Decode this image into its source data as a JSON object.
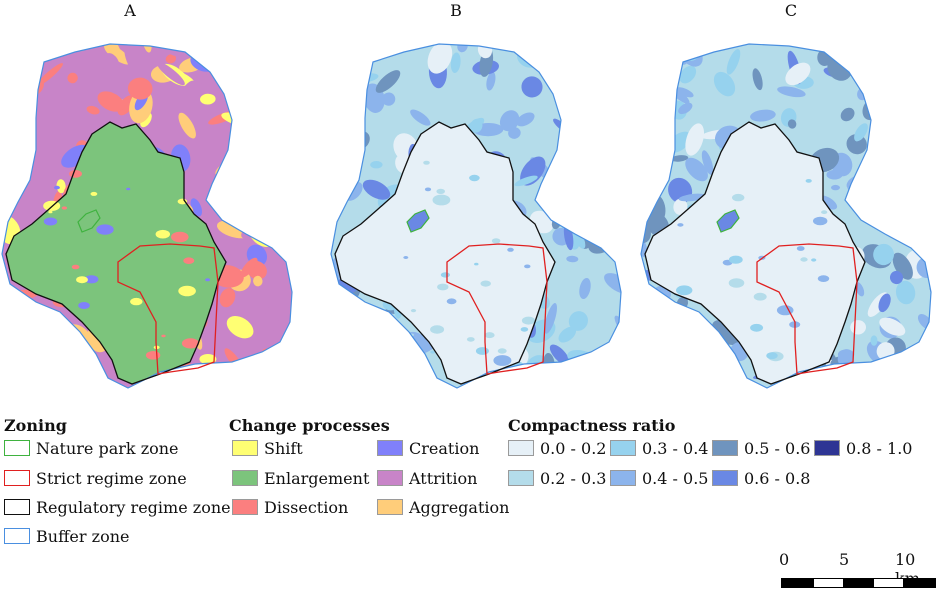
{
  "panels": [
    {
      "label": "A",
      "theme": "change"
    },
    {
      "label": "B",
      "theme": "compact"
    },
    {
      "label": "C",
      "theme": "compact"
    }
  ],
  "legend": {
    "zoning": {
      "title": "Zoning",
      "items": [
        {
          "label": "Nature park zone",
          "color": "#3fb23f"
        },
        {
          "label": "Strict regime zone",
          "color": "#e02020"
        },
        {
          "label": "Regulatory regime zone",
          "color": "#111111"
        },
        {
          "label": "Buffer zone",
          "color": "#4a8fe0"
        }
      ]
    },
    "change": {
      "title": "Change processes",
      "items": [
        {
          "label": "Shift",
          "color": "#ffff73"
        },
        {
          "label": "Enlargement",
          "color": "#7cc47c"
        },
        {
          "label": "Dissection",
          "color": "#fb7f7f"
        },
        {
          "label": "Creation",
          "color": "#8080fa"
        },
        {
          "label": "Attrition",
          "color": "#c884c8"
        },
        {
          "label": "Aggregation",
          "color": "#ffcd7a"
        }
      ]
    },
    "compactness": {
      "title": "Compactness ratio",
      "items": [
        {
          "label": "0.0 - 0.2",
          "color": "#e6f0f7"
        },
        {
          "label": "0.2 - 0.3",
          "color": "#b4dcea"
        },
        {
          "label": "0.3 - 0.4",
          "color": "#96d2ee"
        },
        {
          "label": "0.4 - 0.5",
          "color": "#8cb4ec"
        },
        {
          "label": "0.5 - 0.6",
          "color": "#6f94be"
        },
        {
          "label": "0.6 - 0.8",
          "color": "#6a88e4"
        },
        {
          "label": "0.8 - 1.0",
          "color": "#2e3594"
        }
      ]
    }
  },
  "scale_bar": {
    "ticks": [
      "0",
      "5",
      "10 km"
    ]
  }
}
